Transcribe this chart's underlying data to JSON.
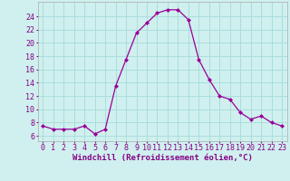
{
  "x": [
    0,
    1,
    2,
    3,
    4,
    5,
    6,
    7,
    8,
    9,
    10,
    11,
    12,
    13,
    14,
    15,
    16,
    17,
    18,
    19,
    20,
    21,
    22,
    23
  ],
  "y": [
    7.5,
    7.0,
    7.0,
    7.0,
    7.5,
    6.3,
    7.0,
    13.5,
    17.5,
    21.5,
    23.0,
    24.5,
    25.0,
    25.0,
    23.5,
    17.5,
    14.5,
    12.0,
    11.5,
    9.5,
    8.5,
    9.0,
    8.0,
    7.5
  ],
  "line_color": "#990099",
  "marker": "D",
  "marker_size": 2,
  "background_color": "#cff0ee",
  "grid_color": "#aadddd",
  "xlabel": "Windchill (Refroidissement éolien,°C)",
  "xlabel_fontsize": 6.5,
  "tick_fontsize": 6,
  "ylabel_ticks": [
    6,
    8,
    10,
    12,
    14,
    16,
    18,
    20,
    22,
    24
  ],
  "ylim": [
    5.2,
    26.2
  ],
  "xlim": [
    -0.5,
    23.5
  ],
  "xtick_labels": [
    "0",
    "1",
    "2",
    "3",
    "4",
    "5",
    "6",
    "7",
    "8",
    "9",
    "10",
    "11",
    "12",
    "13",
    "14",
    "15",
    "16",
    "17",
    "18",
    "19",
    "20",
    "21",
    "22",
    "23"
  ],
  "label_color": "#880088"
}
